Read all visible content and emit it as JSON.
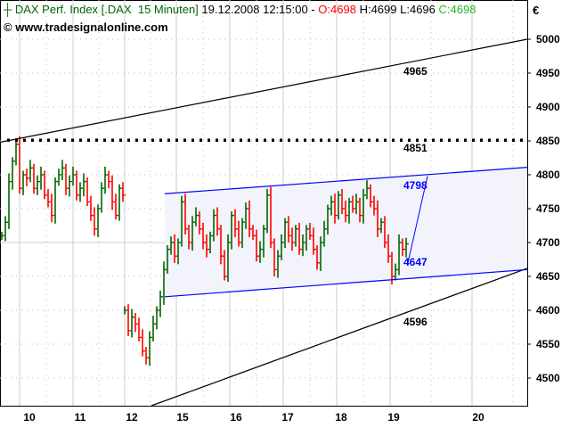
{
  "header": {
    "symbol": "DAX Perf. Index [.DAX",
    "interval": "15 Minuten]",
    "datetime": "19.12.2008 12:15:00",
    "sep": "-",
    "open": "O:4698",
    "high": "H:4699",
    "low": "L:4696",
    "close": "C:4698"
  },
  "source": "© www.tradesignalonline.com",
  "currency": "€",
  "colors": {
    "up": "#006600",
    "down": "#ff0000",
    "channel": "#0000ff",
    "trend": "#000000",
    "title": "#006600"
  },
  "chart_data": {
    "type": "ohlc",
    "ylim": [
      4460,
      5040
    ],
    "yticks": [
      4500,
      4550,
      4600,
      4650,
      4700,
      4750,
      4800,
      4850,
      4900,
      4950,
      5000
    ],
    "xtick_labels": [
      "10",
      "11",
      "12",
      "15",
      "16",
      "17",
      "18",
      "19",
      "20"
    ],
    "grid": true,
    "segment1_closes": [
      4710,
      4730,
      4790,
      4820,
      4845,
      4780,
      4800,
      4795,
      4810,
      4780,
      4790,
      4800,
      4770,
      4760,
      4740,
      4790,
      4800,
      4810,
      4780,
      4790,
      4800,
      4770,
      4780,
      4790,
      4760,
      4740,
      4720,
      4750,
      4780,
      4800,
      4790,
      4760,
      4740,
      4780,
      4770
    ],
    "segment2_closes": [
      4600,
      4570,
      4590,
      4580,
      4560,
      4540,
      4530,
      4560,
      4580,
      4600,
      4620,
      4660,
      4690,
      4700,
      4680,
      4700,
      4760,
      4720,
      4700,
      4730,
      4740,
      4720,
      4700,
      4690,
      4710,
      4740,
      4720,
      4680,
      4650,
      4700,
      4740,
      4720,
      4700,
      4730,
      4750,
      4720,
      4710,
      4680,
      4690,
      4720,
      4770,
      4700,
      4660,
      4680,
      4700,
      4730,
      4710,
      4700,
      4720,
      4690,
      4700,
      4720,
      4710,
      4690,
      4670,
      4700,
      4720,
      4750,
      4760,
      4740,
      4770,
      4750,
      4740,
      4760,
      4750,
      4760,
      4740,
      4770,
      4780,
      4760,
      4750,
      4720,
      4730,
      4700,
      4680,
      4650,
      4660,
      4700,
      4690,
      4698
    ],
    "levels": {
      "resistance_dotted": 4851
    },
    "annotations": [
      {
        "text": "4965",
        "color": "trend"
      },
      {
        "text": "4851",
        "color": "trend"
      },
      {
        "text": "4798",
        "color": "channel"
      },
      {
        "text": "4647",
        "color": "channel"
      },
      {
        "text": "4596",
        "color": "trend"
      }
    ]
  }
}
